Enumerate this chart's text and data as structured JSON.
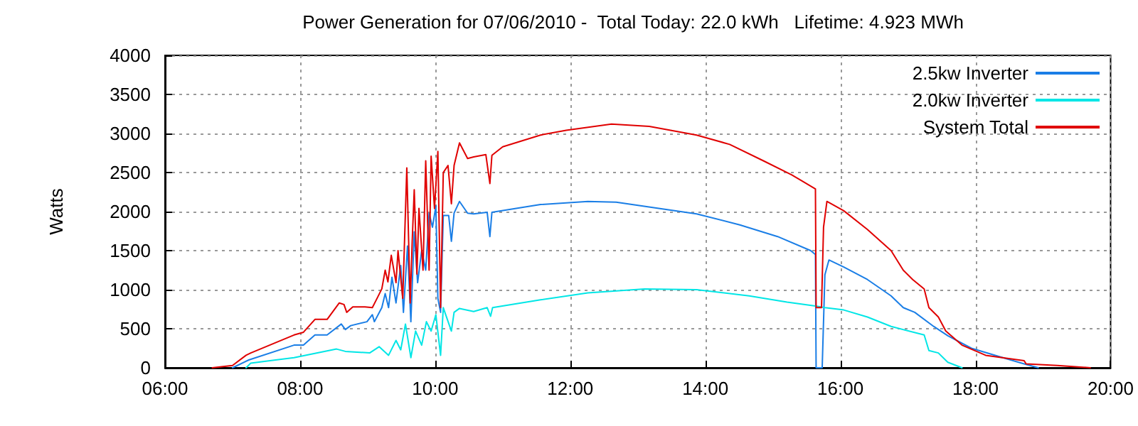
{
  "chart_data": {
    "type": "line",
    "title": "Power Generation for 07/06/2010 -  Total Today: 22.0 kWh   Lifetime: 4.923 MWh",
    "ylabel": "Watts",
    "xlim": [
      6,
      20
    ],
    "xticks": [
      {
        "value": 6,
        "label": "06:00"
      },
      {
        "value": 8,
        "label": "08:00"
      },
      {
        "value": 10,
        "label": "10:00"
      },
      {
        "value": 12,
        "label": "12:00"
      },
      {
        "value": 14,
        "label": "14:00"
      },
      {
        "value": 16,
        "label": "16:00"
      },
      {
        "value": 18,
        "label": "18:00"
      },
      {
        "value": 20,
        "label": "20:00"
      }
    ],
    "ylim": [
      0,
      4000
    ],
    "yticks": [
      0,
      500,
      1000,
      1500,
      2000,
      2500,
      3000,
      3500,
      4000
    ],
    "grid": true,
    "legend": "top right",
    "marker": "none",
    "line_style": "solid",
    "series": [
      {
        "name": "2.5kw Inverter",
        "color": "#1a7ee6",
        "x": [
          7.0,
          7.24,
          7.91,
          8.05,
          8.22,
          8.4,
          8.61,
          8.67,
          8.75,
          8.99,
          9.07,
          9.1,
          9.21,
          9.26,
          9.31,
          9.36,
          9.42,
          9.49,
          9.53,
          9.59,
          9.64,
          9.69,
          9.74,
          9.8,
          9.86,
          9.91,
          9.96,
          10.01,
          10.04,
          10.08,
          10.12,
          10.2,
          10.24,
          10.28,
          10.36,
          10.48,
          10.57,
          10.77,
          10.81,
          10.84,
          11.56,
          12.26,
          12.68,
          13.31,
          13.87,
          14.51,
          15.07,
          15.56,
          15.63,
          15.64,
          15.7,
          15.73,
          15.77,
          15.83,
          16.05,
          16.4,
          16.75,
          16.93,
          17.1,
          17.38,
          17.59,
          17.94,
          18.44,
          18.72,
          18.93
        ],
        "values": [
          0,
          100,
          290,
          290,
          420,
          420,
          560,
          490,
          540,
          590,
          680,
          590,
          770,
          950,
          770,
          1160,
          830,
          1310,
          710,
          1560,
          590,
          1740,
          1090,
          1500,
          1250,
          1980,
          1800,
          2070,
          890,
          710,
          1950,
          1950,
          1620,
          1980,
          2130,
          1980,
          1970,
          1990,
          1680,
          1990,
          2090,
          2130,
          2120,
          2040,
          1970,
          1830,
          1680,
          1500,
          1450,
          0,
          0,
          0,
          1190,
          1380,
          1290,
          1130,
          920,
          770,
          710,
          530,
          410,
          250,
          120,
          50,
          0
        ]
      },
      {
        "name": "2.0kw Inverter",
        "color": "#00e6e6",
        "x": [
          7.2,
          7.27,
          7.91,
          8.54,
          8.67,
          9.03,
          9.17,
          9.31,
          9.42,
          9.49,
          9.56,
          9.64,
          9.71,
          9.8,
          9.87,
          9.94,
          10.01,
          10.08,
          10.12,
          10.24,
          10.28,
          10.36,
          10.57,
          10.77,
          10.82,
          10.85,
          11.56,
          12.26,
          13.1,
          13.87,
          14.65,
          15.21,
          15.63,
          15.77,
          16.05,
          16.4,
          16.75,
          17.24,
          17.31,
          17.45,
          17.59,
          17.8
        ],
        "values": [
          0,
          60,
          130,
          240,
          210,
          190,
          270,
          160,
          350,
          230,
          560,
          130,
          470,
          290,
          590,
          470,
          680,
          160,
          770,
          470,
          710,
          760,
          720,
          770,
          660,
          770,
          870,
          960,
          1010,
          1000,
          920,
          840,
          790,
          770,
          740,
          650,
          530,
          420,
          220,
          190,
          70,
          0
        ]
      },
      {
        "name": "System Total",
        "color": "#e00000",
        "x": [
          6.7,
          7.0,
          7.2,
          7.27,
          7.91,
          8.05,
          8.22,
          8.4,
          8.58,
          8.65,
          8.69,
          8.78,
          8.96,
          9.07,
          9.14,
          9.21,
          9.26,
          9.3,
          9.35,
          9.42,
          9.45,
          9.52,
          9.58,
          9.63,
          9.66,
          9.69,
          9.73,
          9.76,
          9.82,
          9.86,
          9.91,
          9.94,
          9.99,
          10.04,
          10.08,
          10.12,
          10.19,
          10.24,
          10.28,
          10.36,
          10.48,
          10.57,
          10.75,
          10.81,
          10.84,
          11.0,
          11.56,
          11.94,
          12.61,
          13.17,
          13.87,
          14.36,
          14.86,
          15.28,
          15.63,
          15.64,
          15.72,
          15.75,
          15.8,
          16.05,
          16.4,
          16.75,
          16.93,
          17.07,
          17.24,
          17.31,
          17.45,
          17.56,
          17.8,
          18.15,
          18.72,
          18.75,
          19.21,
          19.7
        ],
        "values": [
          0,
          30,
          160,
          190,
          420,
          455,
          620,
          620,
          830,
          810,
          710,
          780,
          780,
          770,
          890,
          1010,
          1250,
          1100,
          1440,
          1090,
          1500,
          890,
          2560,
          830,
          1620,
          2280,
          1200,
          2040,
          1250,
          2650,
          1250,
          2710,
          2040,
          2770,
          770,
          2500,
          2590,
          2100,
          2590,
          2880,
          2680,
          2700,
          2730,
          2360,
          2720,
          2830,
          2980,
          3040,
          3120,
          3090,
          2980,
          2860,
          2650,
          2470,
          2290,
          770,
          770,
          1800,
          2130,
          2010,
          1770,
          1500,
          1250,
          1130,
          1010,
          770,
          650,
          470,
          290,
          160,
          90,
          50,
          30,
          0
        ]
      }
    ]
  }
}
